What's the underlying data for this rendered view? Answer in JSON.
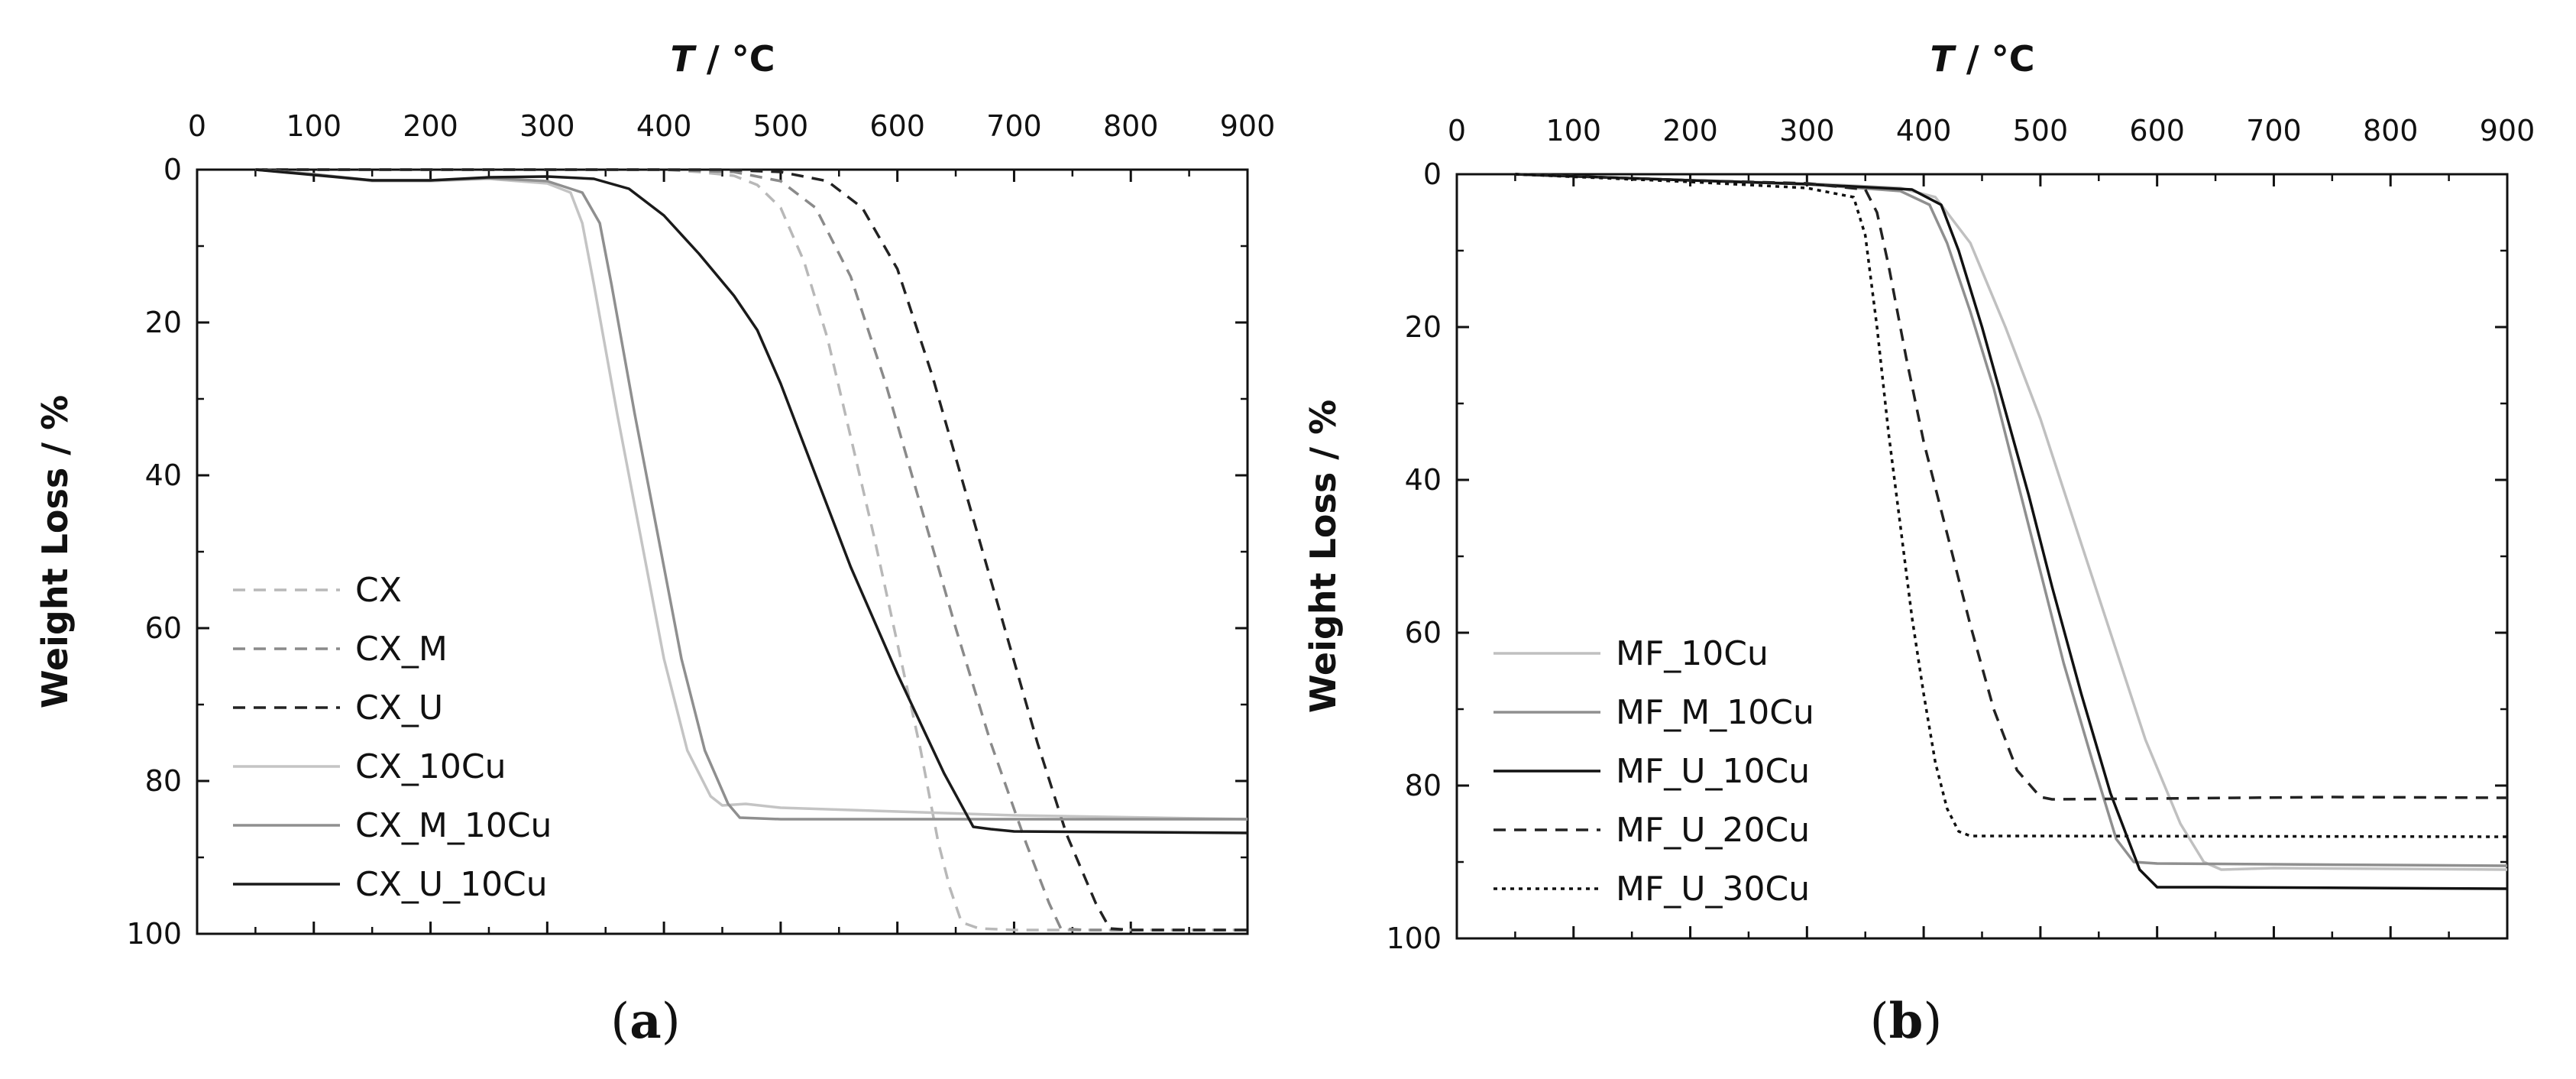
{
  "chart_data": [
    {
      "type": "line",
      "panel_label": "a",
      "xlabel_italic": "T",
      "xlabel_rest": " / °C",
      "ylabel": "Weight Loss / %",
      "xlim": [
        0,
        900
      ],
      "ylim": [
        0,
        100
      ],
      "y_inverted": true,
      "x_axis_position": "top",
      "x_ticks": [
        0,
        100,
        200,
        300,
        400,
        500,
        600,
        700,
        800,
        900
      ],
      "y_ticks": [
        0,
        20,
        40,
        60,
        80,
        100
      ],
      "legend_position": "bottom-left",
      "series": [
        {
          "name": "CX",
          "color": "#b8b8b8",
          "dash": "dashed",
          "points": [
            [
              50,
              0
            ],
            [
              300,
              0
            ],
            [
              400,
              0
            ],
            [
              430,
              0.3
            ],
            [
              460,
              0.8
            ],
            [
              480,
              2
            ],
            [
              500,
              5
            ],
            [
              520,
              12
            ],
            [
              540,
              22
            ],
            [
              560,
              35
            ],
            [
              580,
              48
            ],
            [
              600,
              62
            ],
            [
              620,
              76
            ],
            [
              635,
              88
            ],
            [
              645,
              94
            ],
            [
              655,
              98.5
            ],
            [
              670,
              99.3
            ],
            [
              700,
              99.5
            ],
            [
              900,
              99.5
            ]
          ]
        },
        {
          "name": "CX_M",
          "color": "#8a8a8a",
          "dash": "dashed",
          "points": [
            [
              50,
              0
            ],
            [
              400,
              0
            ],
            [
              460,
              0.3
            ],
            [
              500,
              1.5
            ],
            [
              530,
              5
            ],
            [
              560,
              14
            ],
            [
              590,
              28
            ],
            [
              620,
              44
            ],
            [
              650,
              60
            ],
            [
              680,
              75
            ],
            [
              710,
              88
            ],
            [
              730,
              96
            ],
            [
              740,
              99.3
            ],
            [
              760,
              99.5
            ],
            [
              900,
              99.5
            ]
          ]
        },
        {
          "name": "CX_U",
          "color": "#222222",
          "dash": "dashed",
          "points": [
            [
              50,
              0
            ],
            [
              450,
              0
            ],
            [
              500,
              0.3
            ],
            [
              540,
              1.5
            ],
            [
              570,
              5
            ],
            [
              600,
              13
            ],
            [
              630,
              27
            ],
            [
              660,
              43
            ],
            [
              690,
              59
            ],
            [
              720,
              75
            ],
            [
              745,
              87
            ],
            [
              770,
              96
            ],
            [
              782,
              99.3
            ],
            [
              800,
              99.5
            ],
            [
              900,
              99.5
            ]
          ]
        },
        {
          "name": "CX_10Cu",
          "color": "#c4c4c4",
          "dash": "solid",
          "points": [
            [
              50,
              0
            ],
            [
              100,
              0.6
            ],
            [
              150,
              1.5
            ],
            [
              200,
              1.5
            ],
            [
              250,
              1.2
            ],
            [
              300,
              1.8
            ],
            [
              320,
              3
            ],
            [
              330,
              7
            ],
            [
              340,
              15
            ],
            [
              360,
              32
            ],
            [
              380,
              48
            ],
            [
              400,
              64
            ],
            [
              420,
              76
            ],
            [
              440,
              82
            ],
            [
              450,
              83.2
            ],
            [
              470,
              83
            ],
            [
              500,
              83.5
            ],
            [
              600,
              84
            ],
            [
              700,
              84.5
            ],
            [
              900,
              85
            ]
          ]
        },
        {
          "name": "CX_M_10Cu",
          "color": "#8f8f8f",
          "dash": "solid",
          "points": [
            [
              50,
              0
            ],
            [
              100,
              0.6
            ],
            [
              150,
              1.4
            ],
            [
              200,
              1.4
            ],
            [
              250,
              1.1
            ],
            [
              300,
              1.5
            ],
            [
              330,
              3
            ],
            [
              345,
              7
            ],
            [
              355,
              15
            ],
            [
              375,
              32
            ],
            [
              395,
              48
            ],
            [
              415,
              64
            ],
            [
              435,
              76
            ],
            [
              455,
              83
            ],
            [
              465,
              84.8
            ],
            [
              500,
              85
            ],
            [
              600,
              85
            ],
            [
              700,
              85
            ],
            [
              900,
              85
            ]
          ]
        },
        {
          "name": "CX_U_10Cu",
          "color": "#1a1a1a",
          "dash": "solid",
          "points": [
            [
              50,
              0
            ],
            [
              100,
              0.7
            ],
            [
              150,
              1.4
            ],
            [
              200,
              1.4
            ],
            [
              250,
              1.0
            ],
            [
              300,
              0.9
            ],
            [
              340,
              1.2
            ],
            [
              370,
              2.5
            ],
            [
              400,
              6
            ],
            [
              430,
              11
            ],
            [
              460,
              16.5
            ],
            [
              480,
              21
            ],
            [
              500,
              28
            ],
            [
              530,
              40
            ],
            [
              560,
              52
            ],
            [
              600,
              66
            ],
            [
              640,
              79
            ],
            [
              665,
              86
            ],
            [
              680,
              86.3
            ],
            [
              700,
              86.6
            ],
            [
              900,
              86.8
            ]
          ]
        }
      ]
    },
    {
      "type": "line",
      "panel_label": "b",
      "xlabel_italic": "T",
      "xlabel_rest": " / °C",
      "ylabel": "Weight Loss / %",
      "xlim": [
        0,
        900
      ],
      "ylim": [
        0,
        100
      ],
      "y_inverted": true,
      "x_axis_position": "top",
      "x_ticks": [
        0,
        100,
        200,
        300,
        400,
        500,
        600,
        700,
        800,
        900
      ],
      "y_ticks": [
        0,
        20,
        40,
        60,
        80,
        100
      ],
      "legend_position": "bottom-left",
      "series": [
        {
          "name": "MF_10Cu",
          "color": "#c0c0c0",
          "dash": "solid",
          "points": [
            [
              50,
              0
            ],
            [
              200,
              0.8
            ],
            [
              300,
              1.2
            ],
            [
              380,
              1.8
            ],
            [
              410,
              3
            ],
            [
              440,
              9
            ],
            [
              470,
              20
            ],
            [
              500,
              32
            ],
            [
              530,
              46
            ],
            [
              560,
              60
            ],
            [
              590,
              74
            ],
            [
              620,
              85
            ],
            [
              640,
              90
            ],
            [
              655,
              91
            ],
            [
              700,
              90.8
            ],
            [
              800,
              90.9
            ],
            [
              900,
              91
            ]
          ]
        },
        {
          "name": "MF_M_10Cu",
          "color": "#8f8f8f",
          "dash": "solid",
          "points": [
            [
              50,
              0
            ],
            [
              200,
              0.8
            ],
            [
              300,
              1.3
            ],
            [
              380,
              2.2
            ],
            [
              405,
              4
            ],
            [
              420,
              9
            ],
            [
              440,
              18
            ],
            [
              460,
              28
            ],
            [
              480,
              40
            ],
            [
              500,
              52
            ],
            [
              520,
              64
            ],
            [
              545,
              77
            ],
            [
              565,
              87
            ],
            [
              580,
              90
            ],
            [
              600,
              90.2
            ],
            [
              700,
              90.3
            ],
            [
              900,
              90.5
            ]
          ]
        },
        {
          "name": "MF_U_10Cu",
          "color": "#111111",
          "dash": "solid",
          "points": [
            [
              50,
              0
            ],
            [
              200,
              0.8
            ],
            [
              300,
              1.3
            ],
            [
              390,
              2
            ],
            [
              415,
              4
            ],
            [
              430,
              10
            ],
            [
              450,
              20
            ],
            [
              470,
              31
            ],
            [
              490,
              42
            ],
            [
              510,
              54
            ],
            [
              535,
              68
            ],
            [
              560,
              81
            ],
            [
              585,
              91
            ],
            [
              600,
              93.3
            ],
            [
              650,
              93.3
            ],
            [
              900,
              93.5
            ]
          ]
        },
        {
          "name": "MF_U_20Cu",
          "color": "#222222",
          "dash": "dashed",
          "points": [
            [
              50,
              0
            ],
            [
              200,
              0.8
            ],
            [
              300,
              1.2
            ],
            [
              350,
              2
            ],
            [
              360,
              5
            ],
            [
              370,
              12
            ],
            [
              385,
              24
            ],
            [
              400,
              35
            ],
            [
              420,
              47
            ],
            [
              440,
              59
            ],
            [
              460,
              70
            ],
            [
              480,
              78
            ],
            [
              500,
              81.5
            ],
            [
              510,
              81.8
            ],
            [
              600,
              81.7
            ],
            [
              750,
              81.5
            ],
            [
              900,
              81.6
            ]
          ]
        },
        {
          "name": "MF_U_30Cu",
          "color": "#111111",
          "dash": "dotted",
          "points": [
            [
              50,
              0
            ],
            [
              200,
              1
            ],
            [
              300,
              1.8
            ],
            [
              340,
              3
            ],
            [
              350,
              8
            ],
            [
              360,
              20
            ],
            [
              370,
              34
            ],
            [
              380,
              46
            ],
            [
              390,
              58
            ],
            [
              400,
              68
            ],
            [
              410,
              77
            ],
            [
              420,
              83
            ],
            [
              430,
              86
            ],
            [
              440,
              86.6
            ],
            [
              500,
              86.6
            ],
            [
              900,
              86.7
            ]
          ]
        }
      ]
    }
  ]
}
